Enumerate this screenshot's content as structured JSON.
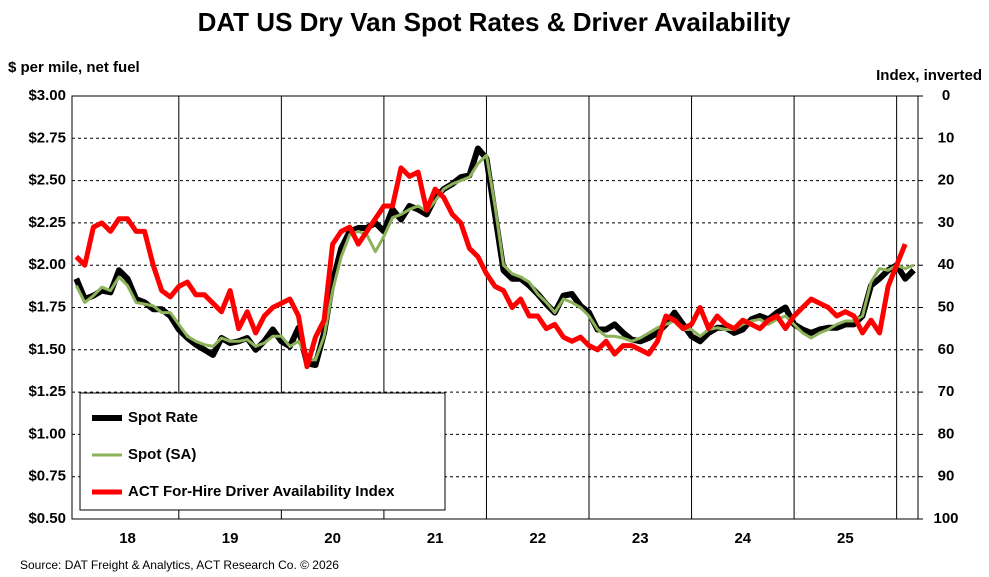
{
  "chart_data": {
    "type": "line",
    "title": "DAT US Dry Van Spot Rates & Driver Availability",
    "y_label": "$ per mile, net fuel",
    "y2_label": "Index, inverted",
    "source": "Source: DAT Freight & Analytics, ACT Research Co. © 2026",
    "categories": [
      null,
      null,
      null,
      null,
      null,
      null,
      "18",
      null,
      null,
      null,
      null,
      null,
      null,
      null,
      null,
      null,
      null,
      null,
      "19",
      null,
      null,
      null,
      null,
      null,
      null,
      null,
      null,
      null,
      null,
      null,
      "20",
      null,
      null,
      null,
      null,
      null,
      null,
      null,
      null,
      null,
      null,
      null,
      "21",
      null,
      null,
      null,
      null,
      null,
      null,
      null,
      null,
      null,
      null,
      null,
      "22",
      null,
      null,
      null,
      null,
      null,
      null,
      null,
      null,
      null,
      null,
      null,
      "23",
      null,
      null,
      null,
      null,
      null,
      null,
      null,
      null,
      null,
      null,
      null,
      "24",
      null,
      null,
      null,
      null,
      null,
      null,
      null,
      null,
      null,
      null,
      null,
      "25",
      null,
      null,
      null,
      null,
      null,
      null,
      null,
      null
    ],
    "ylim": [
      0.5,
      3.0
    ],
    "yticks": [
      {
        "value": 0.5,
        "label": "$0.50"
      },
      {
        "value": 0.75,
        "label": "$0.75"
      },
      {
        "value": 1.0,
        "label": "$1.00"
      },
      {
        "value": 1.25,
        "label": "$1.25"
      },
      {
        "value": 1.5,
        "label": "$1.50"
      },
      {
        "value": 1.75,
        "label": "$1.75"
      },
      {
        "value": 2.0,
        "label": "$2.00"
      },
      {
        "value": 2.25,
        "label": "$2.25"
      },
      {
        "value": 2.5,
        "label": "$2.50"
      },
      {
        "value": 2.75,
        "label": "$2.75"
      },
      {
        "value": 3.0,
        "label": "$3.00"
      }
    ],
    "y2lim": [
      100,
      0
    ],
    "y2ticks": [
      0,
      10,
      20,
      30,
      40,
      50,
      60,
      70,
      80,
      90,
      100
    ],
    "grid": true,
    "legend": "lower left",
    "series": [
      {
        "name": "Spot Rate",
        "color": "#000000",
        "values": [
          1.92,
          1.8,
          1.82,
          1.85,
          1.84,
          1.97,
          1.92,
          1.8,
          1.78,
          1.74,
          1.74,
          1.7,
          1.62,
          1.57,
          1.53,
          1.5,
          1.47,
          1.57,
          1.54,
          1.55,
          1.57,
          1.5,
          1.55,
          1.62,
          1.55,
          1.52,
          1.63,
          1.42,
          1.41,
          1.6,
          1.9,
          2.1,
          2.2,
          2.22,
          2.22,
          2.25,
          2.2,
          2.33,
          2.27,
          2.35,
          2.33,
          2.3,
          2.4,
          2.45,
          2.48,
          2.52,
          2.53,
          2.69,
          2.63,
          2.3,
          1.97,
          1.92,
          1.92,
          1.88,
          1.83,
          1.77,
          1.72,
          1.82,
          1.83,
          1.76,
          1.72,
          1.62,
          1.62,
          1.65,
          1.6,
          1.56,
          1.55,
          1.57,
          1.6,
          1.65,
          1.72,
          1.65,
          1.58,
          1.55,
          1.6,
          1.63,
          1.63,
          1.6,
          1.62,
          1.68,
          1.7,
          1.68,
          1.72,
          1.75,
          1.65,
          1.62,
          1.6,
          1.62,
          1.63,
          1.63,
          1.65,
          1.65,
          1.7,
          1.88,
          1.92,
          1.97,
          2.0,
          1.92,
          1.97
        ]
      },
      {
        "name": "Spot (SA)",
        "color": "#8db35a",
        "values": [
          1.88,
          1.78,
          1.82,
          1.87,
          1.85,
          1.93,
          1.88,
          1.78,
          1.77,
          1.76,
          1.72,
          1.72,
          1.65,
          1.58,
          1.55,
          1.53,
          1.52,
          1.57,
          1.55,
          1.55,
          1.56,
          1.52,
          1.54,
          1.58,
          1.58,
          1.52,
          1.55,
          1.45,
          1.44,
          1.58,
          1.85,
          2.05,
          2.18,
          2.2,
          2.18,
          2.08,
          2.17,
          2.28,
          2.3,
          2.33,
          2.35,
          2.32,
          2.38,
          2.45,
          2.48,
          2.5,
          2.52,
          2.6,
          2.65,
          2.35,
          2.0,
          1.95,
          1.93,
          1.9,
          1.83,
          1.78,
          1.72,
          1.8,
          1.78,
          1.75,
          1.7,
          1.62,
          1.58,
          1.58,
          1.57,
          1.55,
          1.57,
          1.6,
          1.63,
          1.65,
          1.67,
          1.62,
          1.62,
          1.58,
          1.62,
          1.63,
          1.62,
          1.62,
          1.65,
          1.67,
          1.68,
          1.65,
          1.68,
          1.7,
          1.65,
          1.6,
          1.57,
          1.6,
          1.62,
          1.65,
          1.67,
          1.67,
          1.7,
          1.9,
          1.98,
          1.97,
          2.0,
          1.98,
          2.0
        ]
      },
      {
        "name": "ACT For-Hire Driver Availability Index",
        "color": "#ff0000",
        "axis": "y2",
        "values": [
          38,
          40,
          31,
          30,
          32,
          29,
          29,
          32,
          32,
          40,
          46,
          47.5,
          45,
          44,
          47,
          47,
          49,
          51,
          46,
          55,
          51,
          56,
          52,
          50,
          49,
          48,
          52,
          64,
          57,
          53,
          35,
          32,
          31,
          35,
          32,
          29,
          26,
          26,
          17,
          19,
          18,
          27,
          22,
          24,
          28,
          30,
          36,
          38,
          42,
          45,
          46,
          50,
          48,
          52,
          52,
          55,
          54,
          57,
          58,
          57,
          59,
          60,
          58,
          61,
          59,
          59,
          60,
          61,
          58,
          52,
          53,
          55,
          54,
          50,
          55,
          52,
          54,
          55,
          53,
          54,
          55,
          53,
          52,
          55,
          52,
          50,
          48,
          49,
          50,
          52,
          51,
          52,
          56,
          53,
          56,
          45,
          40,
          35,
          null
        ]
      }
    ]
  }
}
